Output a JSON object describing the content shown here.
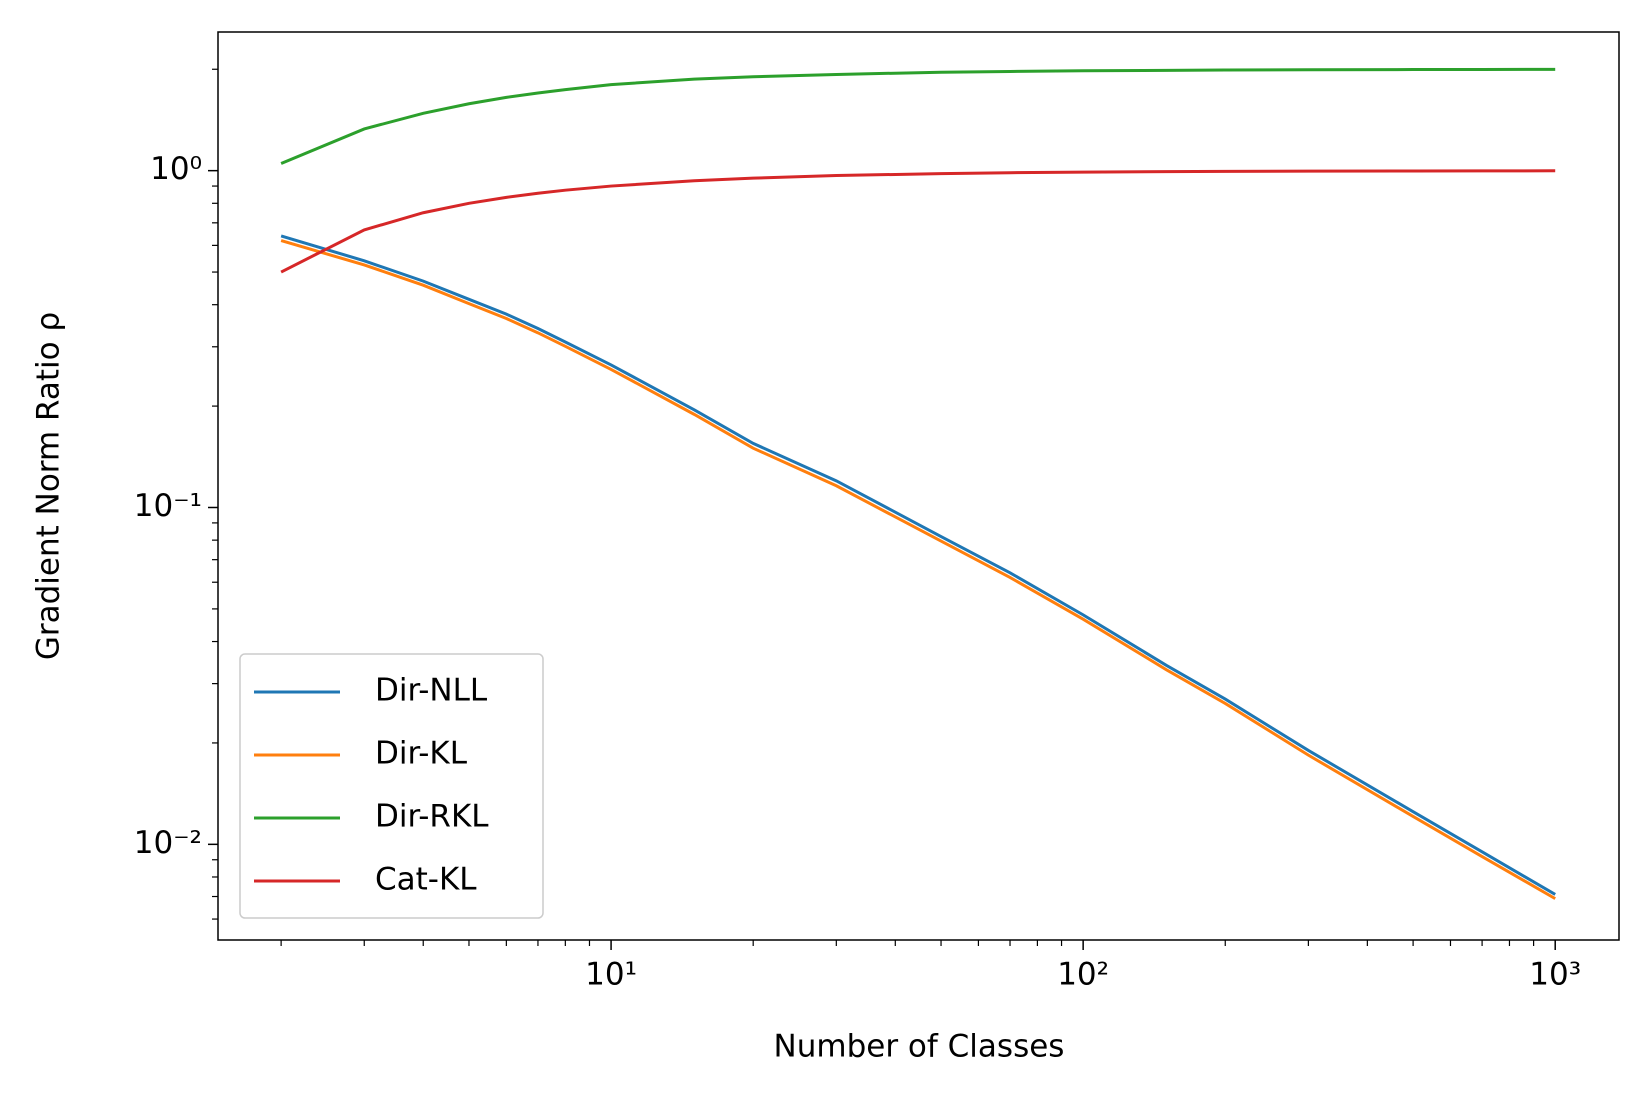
{
  "chart_data": {
    "type": "line",
    "xlabel": "Number of Classes",
    "ylabel": "Gradient Norm Ratio ρ",
    "xscale": "log",
    "yscale": "log",
    "x": [
      2,
      3,
      4,
      5,
      6,
      7,
      8,
      10,
      15,
      20,
      30,
      50,
      70,
      100,
      150,
      200,
      300,
      500,
      700,
      1000
    ],
    "series": [
      {
        "name": "Dir-NLL",
        "color": "#1f77b4",
        "values": [
          0.64,
          0.54,
          0.47,
          0.415,
          0.375,
          0.34,
          0.31,
          0.265,
          0.195,
          0.155,
          0.12,
          0.082,
          0.064,
          0.048,
          0.034,
          0.027,
          0.019,
          0.0125,
          0.0095,
          0.0071
        ]
      },
      {
        "name": "Dir-KL",
        "color": "#ff7f0e",
        "values": [
          0.62,
          0.525,
          0.457,
          0.403,
          0.364,
          0.33,
          0.301,
          0.257,
          0.189,
          0.15,
          0.116,
          0.0795,
          0.062,
          0.0466,
          0.033,
          0.0262,
          0.0184,
          0.0121,
          0.0092,
          0.0069
        ]
      },
      {
        "name": "Dir-RKL",
        "color": "#2ca02c",
        "values": [
          1.05,
          1.33,
          1.48,
          1.58,
          1.65,
          1.7,
          1.74,
          1.8,
          1.87,
          1.9,
          1.93,
          1.96,
          1.97,
          1.98,
          1.985,
          1.99,
          1.993,
          1.996,
          1.997,
          1.998
        ]
      },
      {
        "name": "Cat-KL",
        "color": "#d62728",
        "values": [
          0.5,
          0.667,
          0.75,
          0.8,
          0.833,
          0.857,
          0.875,
          0.9,
          0.933,
          0.95,
          0.967,
          0.98,
          0.986,
          0.99,
          0.993,
          0.995,
          0.997,
          0.998,
          0.9986,
          0.999
        ]
      }
    ],
    "xlim": [
      1.47,
      1365
    ],
    "ylim": [
      0.0052,
      2.58
    ],
    "xticks": [
      {
        "value": 10,
        "label": "10¹"
      },
      {
        "value": 100,
        "label": "10²"
      },
      {
        "value": 1000,
        "label": "10³"
      }
    ],
    "yticks": [
      {
        "value": 0.01,
        "label": "10⁻²"
      },
      {
        "value": 0.1,
        "label": "10⁻¹"
      },
      {
        "value": 1,
        "label": "10⁰"
      }
    ],
    "xminor": [
      2,
      3,
      4,
      5,
      6,
      7,
      8,
      9,
      20,
      30,
      40,
      50,
      60,
      70,
      80,
      90,
      200,
      300,
      400,
      500,
      600,
      700,
      800,
      900
    ],
    "yminor": [
      0.006,
      0.007,
      0.008,
      0.009,
      0.02,
      0.03,
      0.04,
      0.05,
      0.06,
      0.07,
      0.08,
      0.09,
      0.2,
      0.3,
      0.4,
      0.5,
      0.6,
      0.7,
      0.8,
      0.9,
      2
    ],
    "legend": "lower left"
  }
}
